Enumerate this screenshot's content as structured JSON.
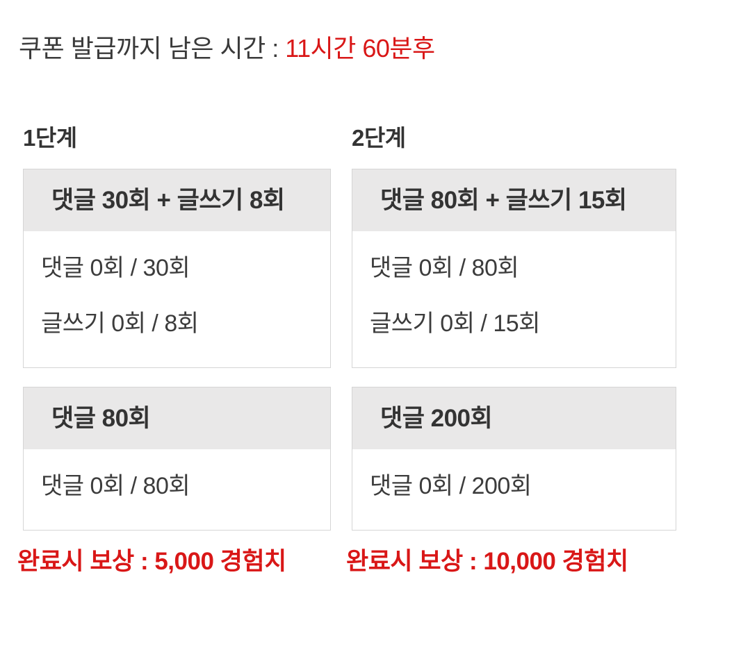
{
  "timer": {
    "label": "쿠폰 발급까지 남은 시간 : ",
    "remaining": "11시간 60분후"
  },
  "stages": [
    {
      "title": "1단계",
      "missions": [
        {
          "title": "댓글 30회 + 글쓰기 8회",
          "rows": [
            "댓글 0회 / 30회",
            "글쓰기 0회 / 8회"
          ]
        },
        {
          "title": "댓글 80회",
          "rows": [
            "댓글 0회 / 80회"
          ]
        }
      ],
      "reward": "완료시 보상 : 5,000 경험치"
    },
    {
      "title": "2단계",
      "missions": [
        {
          "title": "댓글 80회 + 글쓰기 15회",
          "rows": [
            "댓글 0회 / 80회",
            "글쓰기 0회 / 15회"
          ]
        },
        {
          "title": "댓글 200회",
          "rows": [
            "댓글 0회 / 200회"
          ]
        }
      ],
      "reward": "완료시 보상 : 10,000 경험치"
    }
  ],
  "colors": {
    "accent_red": "#d91717",
    "text_dark": "#3a3a3a",
    "card_header_bg": "#e9e8e8",
    "card_border": "#d5d5d5",
    "page_bg": "#ffffff"
  }
}
